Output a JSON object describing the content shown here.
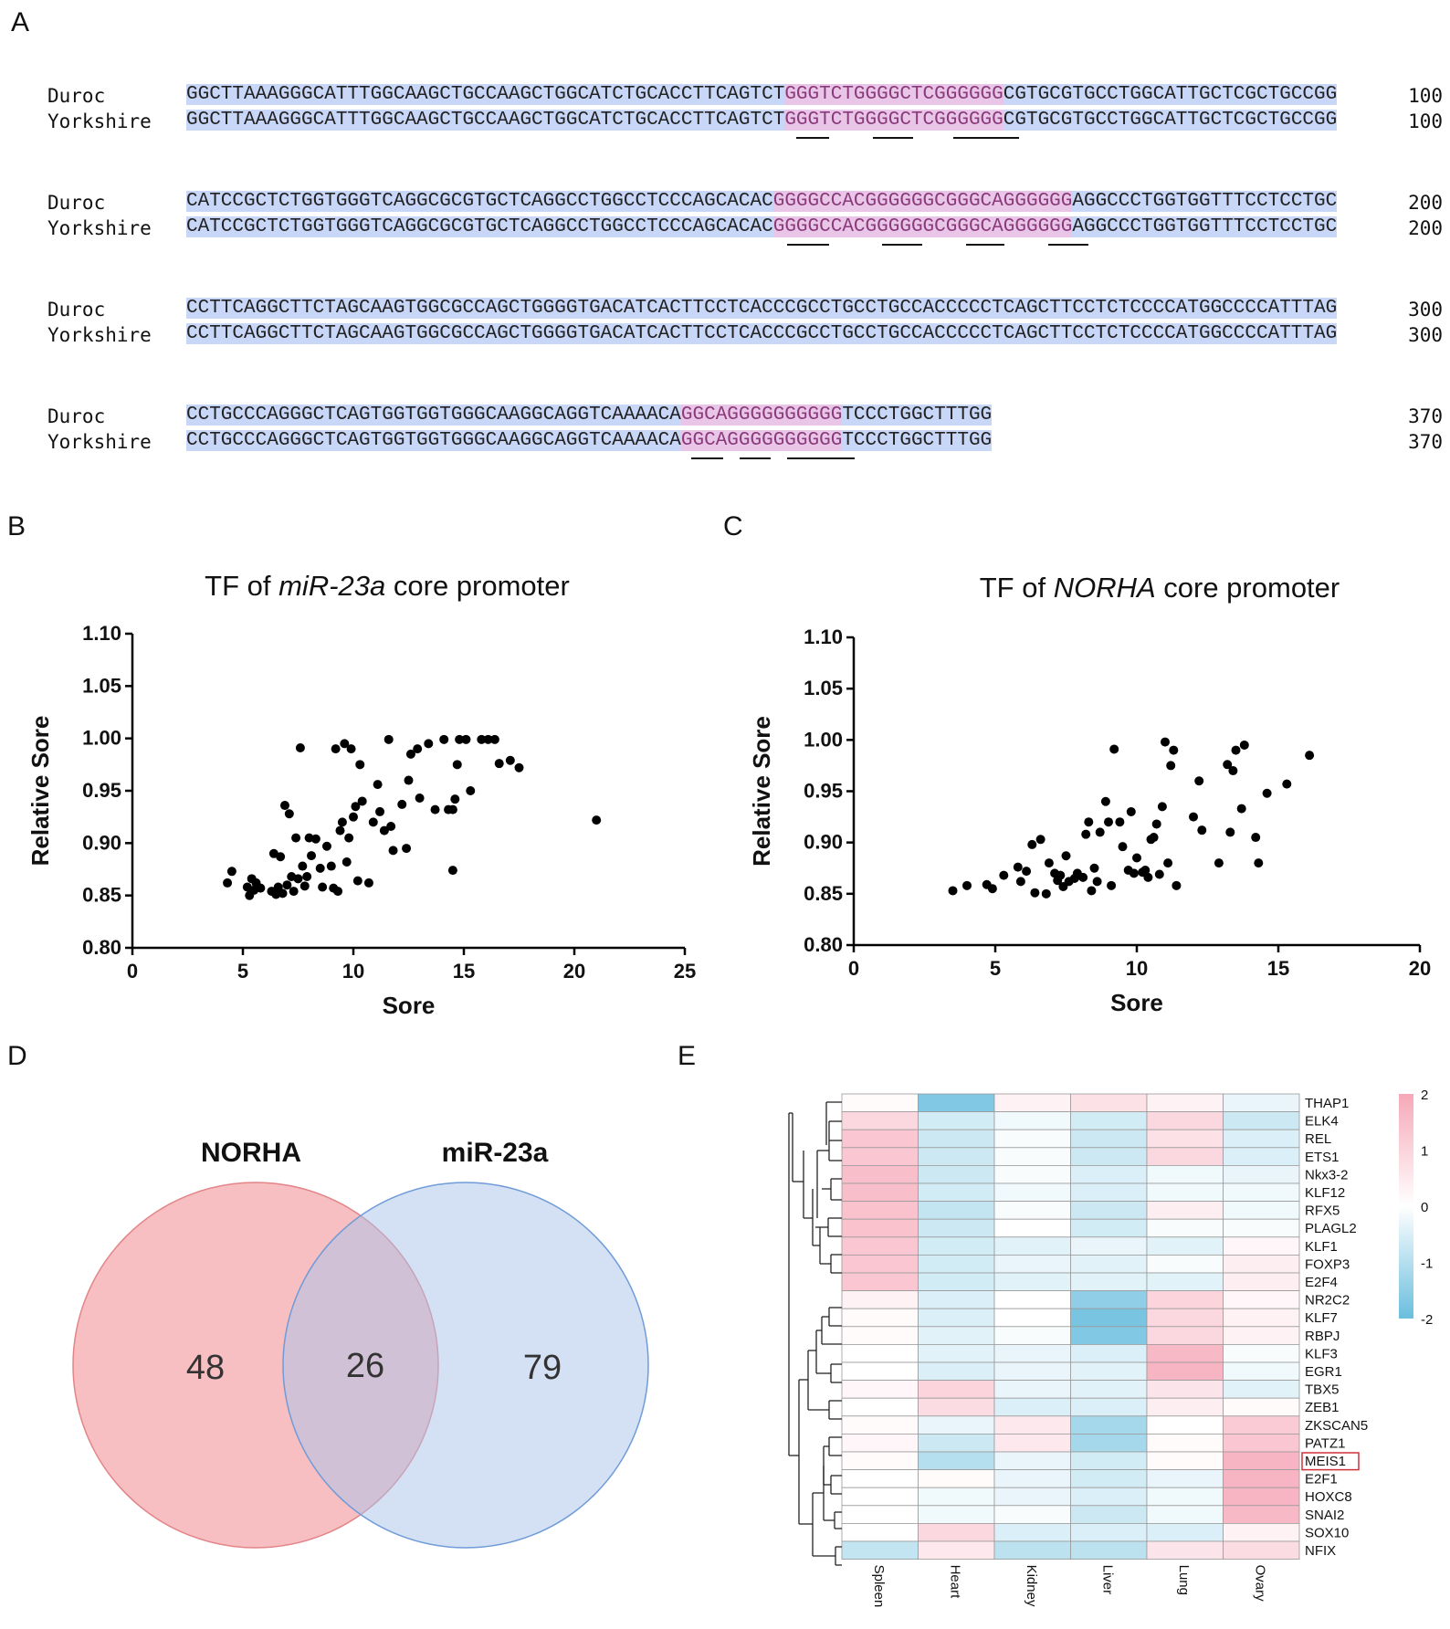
{
  "panels": {
    "a": "A",
    "b": "B",
    "c": "C",
    "d": "D",
    "e": "E"
  },
  "alignment": {
    "species": [
      "Duroc",
      "Yorkshire"
    ],
    "blocks": [
      {
        "pre": "GGCTTAAAGGGCATTTGGCAAGCTGCCAAGCTGGCATCTGCACCTTCAGTCT",
        "motif": "GGGTCTGGGGCTCGGGGGG",
        "post": "CGTGCGTGCCTGGCATTGCTCGCTGCCGG",
        "end": "100"
      },
      {
        "pre": "CATCCGCTCTGGTGGGTCAGGCGCGTGCTCAGGCCTGGCCTCCCAGCACAC",
        "motif": "GGGGCCACGGGGGGCGGGCAGGGGGG",
        "post": "AGGCCCTGGTGGTTTCCTCCTGC",
        "end": "200"
      },
      {
        "pre": "CCTTCAGGCTTCTAGCAAGTGGCGCCAGCTGGGGTGACATCACTTCCTCACCCGCCTGCCTGCCACCCCCTCAGCTTCCTCTCCCCATGGCCCCATTTAG",
        "motif": "",
        "post": "",
        "end": "300"
      },
      {
        "pre": "CCTGCCCAGGGCTCAGTGGTGGTGGGCAAGGCAGGTCAAAACA",
        "motif": "GGCAGGGGGGGGGG",
        "post": "TCCCTGGCTTTGG",
        "end": "370"
      }
    ]
  },
  "scatter_b": {
    "title_pre": "TF of ",
    "title_italic": "miR-23a",
    "title_post": " core promoter",
    "xlabel": "Sore",
    "ylabel": "Relative Sore",
    "xticks": [
      "0",
      "5",
      "10",
      "15",
      "20",
      "25"
    ],
    "yticks": [
      "0.80",
      "0.85",
      "0.90",
      "0.95",
      "1.00",
      "1.05",
      "1.10"
    ]
  },
  "scatter_c": {
    "title_pre": "TF of ",
    "title_italic": "NORHA",
    "title_post": " core promoter",
    "xlabel": "Sore",
    "ylabel": "Relative Sore",
    "xticks": [
      "0",
      "5",
      "10",
      "15",
      "20"
    ],
    "yticks": [
      "0.80",
      "0.85",
      "0.90",
      "0.95",
      "1.00",
      "1.05",
      "1.10"
    ]
  },
  "venn": {
    "left_label": "NORHA",
    "right_label": "miR-23a",
    "left_only": "48",
    "overlap": "26",
    "right_only": "79",
    "left_color": "#f4a9ae",
    "right_color": "#a9c4ea"
  },
  "heatmap": {
    "columns": [
      "Spleen",
      "Heart",
      "Kidney",
      "Liver",
      "Lung",
      "Ovary"
    ],
    "rows": [
      "THAP1",
      "ELK4",
      "REL",
      "ETS1",
      "Nkx3-2",
      "KLF12",
      "RFX5",
      "PLAGL2",
      "KLF1",
      "FOXP3",
      "E2F4",
      "NR2C2",
      "KLF7",
      "RBPJ",
      "KLF3",
      "EGR1",
      "TBX5",
      "ZEB1",
      "ZKSCAN5",
      "PATZ1",
      "MEIS1",
      "E2F1",
      "HOXC8",
      "SNAI2",
      "SOX10",
      "NFIX"
    ],
    "highlighted_row": "MEIS1",
    "legend_ticks": [
      "2",
      "1",
      "0",
      "-1",
      "-2"
    ]
  },
  "chart_data": [
    {
      "type": "scatter",
      "title": "TF of miR-23a core promoter",
      "xlabel": "Sore",
      "ylabel": "Relative Sore",
      "xlim": [
        0,
        25
      ],
      "ylim": [
        0.8,
        1.1
      ],
      "points": [
        [
          4.3,
          0.862
        ],
        [
          4.5,
          0.873
        ],
        [
          5.2,
          0.858
        ],
        [
          5.3,
          0.85
        ],
        [
          5.4,
          0.866
        ],
        [
          5.5,
          0.855
        ],
        [
          5.6,
          0.862
        ],
        [
          5.8,
          0.857
        ],
        [
          6.3,
          0.854
        ],
        [
          6.4,
          0.89
        ],
        [
          6.5,
          0.851
        ],
        [
          6.6,
          0.858
        ],
        [
          6.7,
          0.887
        ],
        [
          6.8,
          0.852
        ],
        [
          6.9,
          0.936
        ],
        [
          7.0,
          0.86
        ],
        [
          7.1,
          0.928
        ],
        [
          7.2,
          0.868
        ],
        [
          7.3,
          0.854
        ],
        [
          7.4,
          0.905
        ],
        [
          7.5,
          0.866
        ],
        [
          7.6,
          0.991
        ],
        [
          7.7,
          0.878
        ],
        [
          7.8,
          0.859
        ],
        [
          7.9,
          0.868
        ],
        [
          8.0,
          0.905
        ],
        [
          8.1,
          0.888
        ],
        [
          8.3,
          0.904
        ],
        [
          8.5,
          0.876
        ],
        [
          8.6,
          0.858
        ],
        [
          8.8,
          0.897
        ],
        [
          9.0,
          0.878
        ],
        [
          9.1,
          0.857
        ],
        [
          9.2,
          0.99
        ],
        [
          9.3,
          0.854
        ],
        [
          9.4,
          0.912
        ],
        [
          9.5,
          0.92
        ],
        [
          9.6,
          0.995
        ],
        [
          9.7,
          0.882
        ],
        [
          9.8,
          0.905
        ],
        [
          9.9,
          0.99
        ],
        [
          10.0,
          0.925
        ],
        [
          10.1,
          0.935
        ],
        [
          10.2,
          0.864
        ],
        [
          10.3,
          0.975
        ],
        [
          10.4,
          0.94
        ],
        [
          10.7,
          0.862
        ],
        [
          10.9,
          0.92
        ],
        [
          11.1,
          0.956
        ],
        [
          11.2,
          0.93
        ],
        [
          11.4,
          0.912
        ],
        [
          11.6,
          0.999
        ],
        [
          11.7,
          0.916
        ],
        [
          11.8,
          0.893
        ],
        [
          12.2,
          0.937
        ],
        [
          12.4,
          0.895
        ],
        [
          12.5,
          0.96
        ],
        [
          12.6,
          0.985
        ],
        [
          12.9,
          0.99
        ],
        [
          13.0,
          0.943
        ],
        [
          13.4,
          0.995
        ],
        [
          13.7,
          0.932
        ],
        [
          14.1,
          0.999
        ],
        [
          14.3,
          0.932
        ],
        [
          14.5,
          0.932
        ],
        [
          14.6,
          0.942
        ],
        [
          14.7,
          0.975
        ],
        [
          14.8,
          0.999
        ],
        [
          15.1,
          0.999
        ],
        [
          15.3,
          0.95
        ],
        [
          15.8,
          0.999
        ],
        [
          16.1,
          0.999
        ],
        [
          16.4,
          0.999
        ],
        [
          16.6,
          0.976
        ],
        [
          17.1,
          0.979
        ],
        [
          17.5,
          0.972
        ],
        [
          14.5,
          0.874
        ],
        [
          21.0,
          0.922
        ]
      ]
    },
    {
      "type": "scatter",
      "title": "TF of NORHA core promoter",
      "xlabel": "Sore",
      "ylabel": "Relative Sore",
      "xlim": [
        0,
        20
      ],
      "ylim": [
        0.8,
        1.1
      ],
      "points": [
        [
          3.5,
          0.853
        ],
        [
          4.0,
          0.858
        ],
        [
          4.7,
          0.859
        ],
        [
          4.9,
          0.855
        ],
        [
          5.3,
          0.868
        ],
        [
          5.8,
          0.876
        ],
        [
          5.9,
          0.862
        ],
        [
          6.1,
          0.872
        ],
        [
          6.3,
          0.898
        ],
        [
          6.4,
          0.851
        ],
        [
          6.6,
          0.903
        ],
        [
          6.8,
          0.85
        ],
        [
          6.9,
          0.88
        ],
        [
          7.1,
          0.87
        ],
        [
          7.2,
          0.863
        ],
        [
          7.3,
          0.868
        ],
        [
          7.4,
          0.857
        ],
        [
          7.5,
          0.887
        ],
        [
          7.6,
          0.862
        ],
        [
          7.8,
          0.865
        ],
        [
          7.9,
          0.87
        ],
        [
          8.1,
          0.866
        ],
        [
          8.2,
          0.908
        ],
        [
          8.3,
          0.92
        ],
        [
          8.4,
          0.853
        ],
        [
          8.5,
          0.875
        ],
        [
          8.6,
          0.862
        ],
        [
          8.7,
          0.91
        ],
        [
          8.9,
          0.94
        ],
        [
          9.0,
          0.92
        ],
        [
          9.1,
          0.858
        ],
        [
          9.2,
          0.991
        ],
        [
          9.4,
          0.92
        ],
        [
          9.5,
          0.896
        ],
        [
          9.7,
          0.873
        ],
        [
          9.8,
          0.93
        ],
        [
          9.9,
          0.87
        ],
        [
          10.0,
          0.885
        ],
        [
          10.2,
          0.871
        ],
        [
          10.3,
          0.873
        ],
        [
          10.4,
          0.866
        ],
        [
          10.5,
          0.903
        ],
        [
          10.6,
          0.905
        ],
        [
          10.7,
          0.918
        ],
        [
          10.8,
          0.869
        ],
        [
          10.9,
          0.935
        ],
        [
          11.0,
          0.998
        ],
        [
          11.1,
          0.88
        ],
        [
          11.2,
          0.975
        ],
        [
          11.3,
          0.99
        ],
        [
          11.4,
          0.858
        ],
        [
          12.0,
          0.925
        ],
        [
          12.2,
          0.96
        ],
        [
          12.3,
          0.912
        ],
        [
          12.9,
          0.88
        ],
        [
          13.2,
          0.976
        ],
        [
          13.3,
          0.91
        ],
        [
          13.4,
          0.97
        ],
        [
          13.5,
          0.99
        ],
        [
          13.8,
          0.995
        ],
        [
          13.7,
          0.933
        ],
        [
          14.2,
          0.905
        ],
        [
          14.3,
          0.88
        ],
        [
          14.6,
          0.948
        ],
        [
          15.3,
          0.957
        ],
        [
          16.1,
          0.985
        ]
      ]
    },
    {
      "type": "venn",
      "sets": [
        "NORHA",
        "miR-23a"
      ],
      "values": {
        "NORHA_only": 48,
        "overlap": 26,
        "miR-23a_only": 79
      }
    },
    {
      "type": "heatmap",
      "rows": [
        "THAP1",
        "ELK4",
        "REL",
        "ETS1",
        "Nkx3-2",
        "KLF12",
        "RFX5",
        "PLAGL2",
        "KLF1",
        "FOXP3",
        "E2F4",
        "NR2C2",
        "KLF7",
        "RBPJ",
        "KLF3",
        "EGR1",
        "TBX5",
        "ZEB1",
        "ZKSCAN5",
        "PATZ1",
        "MEIS1",
        "E2F1",
        "HOXC8",
        "SNAI2",
        "SOX10",
        "NFIX"
      ],
      "columns": [
        "Spleen",
        "Heart",
        "Kidney",
        "Liver",
        "Lung",
        "Ovary"
      ],
      "range": [
        -2,
        2
      ],
      "values": [
        [
          0.1,
          -1.7,
          0.3,
          0.7,
          0.3,
          -0.3
        ],
        [
          0.9,
          -0.6,
          -0.2,
          -0.6,
          0.9,
          -0.7
        ],
        [
          1.3,
          -0.7,
          -0.1,
          -0.7,
          0.7,
          -0.5
        ],
        [
          1.3,
          -0.7,
          -0.1,
          -0.7,
          0.9,
          -0.5
        ],
        [
          1.5,
          -0.7,
          -0.1,
          -0.5,
          -0.2,
          -0.3
        ],
        [
          1.5,
          -0.6,
          -0.2,
          -0.5,
          -0.2,
          -0.2
        ],
        [
          1.4,
          -0.8,
          -0.1,
          -0.7,
          0.4,
          -0.2
        ],
        [
          1.4,
          -0.7,
          0.0,
          -0.6,
          -0.1,
          -0.1
        ],
        [
          1.3,
          -0.6,
          -0.4,
          -0.3,
          -0.4,
          0.2
        ],
        [
          1.3,
          -0.6,
          -0.3,
          -0.4,
          -0.1,
          0.4
        ],
        [
          1.3,
          -0.6,
          -0.4,
          -0.4,
          -0.4,
          0.4
        ],
        [
          0.3,
          -0.5,
          0.0,
          -1.5,
          1.0,
          0.2
        ],
        [
          0.1,
          -0.5,
          0.0,
          -1.8,
          0.9,
          0.3
        ],
        [
          0.1,
          -0.4,
          -0.1,
          -1.7,
          0.9,
          0.3
        ],
        [
          0.0,
          -0.4,
          -0.3,
          -0.5,
          1.6,
          -0.1
        ],
        [
          0.0,
          -0.5,
          -0.3,
          -0.4,
          1.7,
          -0.2
        ],
        [
          0.2,
          1.0,
          -0.3,
          -0.4,
          0.6,
          -0.4
        ],
        [
          0.0,
          0.8,
          -0.5,
          -0.5,
          0.4,
          0.1
        ],
        [
          0.1,
          -0.3,
          0.5,
          -1.2,
          0.0,
          1.2
        ],
        [
          0.2,
          -0.7,
          0.5,
          -1.2,
          0.1,
          1.3
        ],
        [
          0.1,
          -1.0,
          -0.3,
          -0.6,
          0.1,
          1.7
        ],
        [
          0.0,
          0.1,
          -0.3,
          -0.6,
          -0.3,
          1.7
        ],
        [
          0.0,
          -0.2,
          -0.3,
          -0.5,
          -0.2,
          1.7
        ],
        [
          0.0,
          -0.2,
          -0.1,
          -0.7,
          -0.2,
          1.6
        ],
        [
          0.0,
          0.9,
          -0.5,
          -0.5,
          -0.5,
          0.3
        ],
        [
          -0.8,
          0.5,
          -0.9,
          -0.9,
          0.6,
          0.8
        ]
      ]
    }
  ]
}
